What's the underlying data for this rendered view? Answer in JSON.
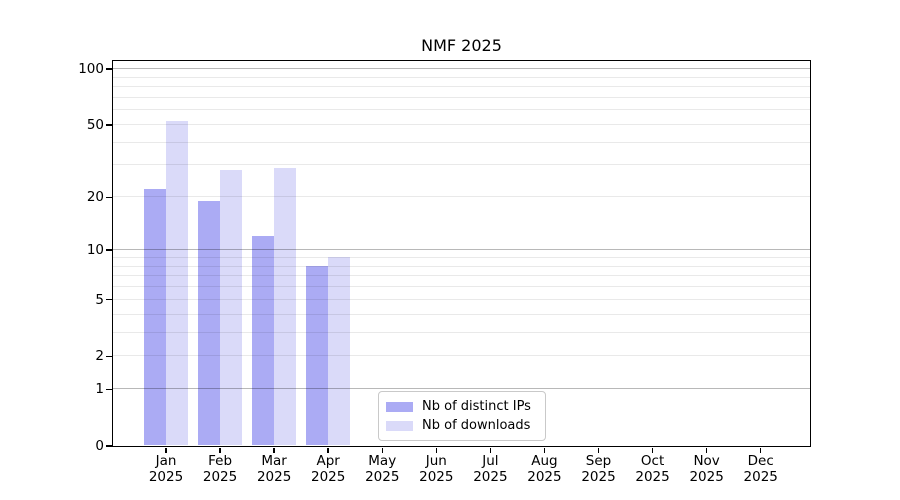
{
  "title": "NMF 2025",
  "chart_data": {
    "type": "bar",
    "title": "NMF 2025",
    "x_tick_months": [
      "Jan",
      "Feb",
      "Mar",
      "Apr",
      "May",
      "Jun",
      "Jul",
      "Aug",
      "Sep",
      "Oct",
      "Nov",
      "Dec"
    ],
    "x_tick_year": "2025",
    "categories": [
      "Jan 2025",
      "Feb 2025",
      "Mar 2025",
      "Apr 2025",
      "May 2025",
      "Jun 2025",
      "Jul 2025",
      "Aug 2025",
      "Sep 2025",
      "Oct 2025",
      "Nov 2025",
      "Dec 2025"
    ],
    "y_scale": "log1p",
    "ylim": [
      0,
      100
    ],
    "y_ticks": [
      0,
      1,
      2,
      5,
      10,
      20,
      50,
      100
    ],
    "y_major_gridlines": [
      1,
      10,
      100
    ],
    "y_minor_gridlines": [
      2,
      3,
      4,
      5,
      6,
      7,
      8,
      9,
      20,
      30,
      40,
      50,
      60,
      70,
      80,
      90
    ],
    "grid": true,
    "legend_position": "lower center",
    "series": [
      {
        "name": "Nb of distinct IPs",
        "color": "#ababf4",
        "values": [
          22,
          19,
          12,
          8,
          0,
          0,
          0,
          0,
          0,
          0,
          0,
          0
        ]
      },
      {
        "name": "Nb of downloads",
        "color": "#dadaf9",
        "values": [
          52,
          28,
          29,
          9,
          0,
          0,
          0,
          0,
          0,
          0,
          0,
          0
        ]
      }
    ]
  },
  "legend": {
    "items": [
      {
        "label": "Nb of distinct IPs",
        "color": "#ababf4"
      },
      {
        "label": "Nb of downloads",
        "color": "#dadaf9"
      }
    ]
  }
}
